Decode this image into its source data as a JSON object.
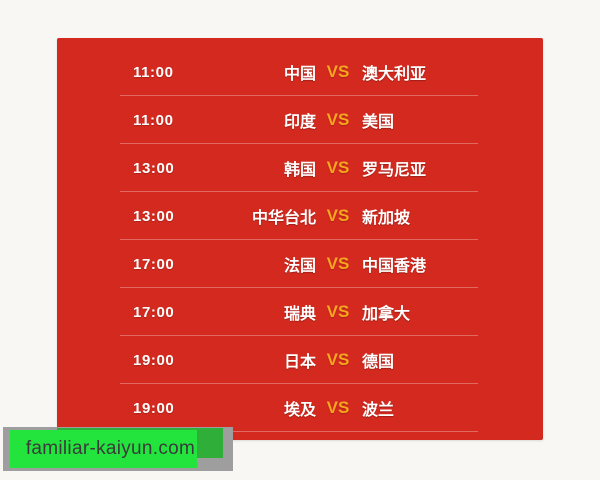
{
  "colors": {
    "page_background": "#f8f7f4",
    "panel_red": "#d4291e",
    "divider": "rgba(255,255,255,0.30)",
    "text_white": "#ffffff",
    "vs_orange": "#f7a51f",
    "badge_green": "#22e43d",
    "badge_dark_green": "#2fae3a",
    "badge_shadow_gray": "#9e9e9e",
    "badge_text": "#3a3a3a"
  },
  "schedule": {
    "vs_label": "VS",
    "matches": [
      {
        "time": "11:00",
        "home": "中国",
        "away": "澳大利亚"
      },
      {
        "time": "11:00",
        "home": "印度",
        "away": "美国"
      },
      {
        "time": "13:00",
        "home": "韩国",
        "away": "罗马尼亚"
      },
      {
        "time": "13:00",
        "home": "中华台北",
        "away": "新加坡"
      },
      {
        "time": "17:00",
        "home": "法国",
        "away": "中国香港"
      },
      {
        "time": "17:00",
        "home": "瑞典",
        "away": "加拿大"
      },
      {
        "time": "19:00",
        "home": "日本",
        "away": "德国"
      },
      {
        "time": "19:00",
        "home": "埃及",
        "away": "波兰"
      }
    ]
  },
  "watermark": {
    "text": "familiar-kaiyun.com"
  }
}
